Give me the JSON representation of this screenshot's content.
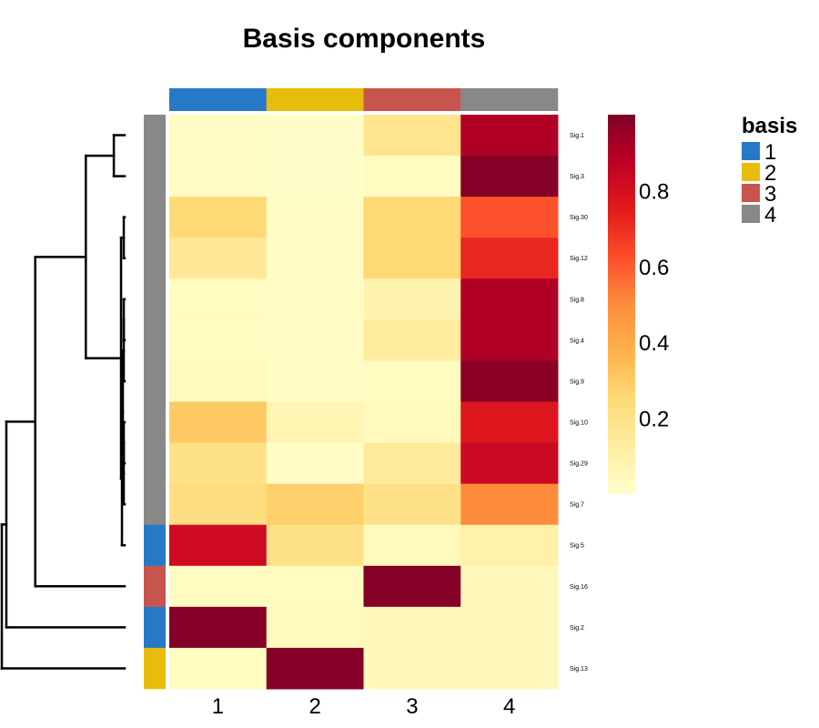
{
  "chart_data": {
    "type": "heatmap",
    "title": "Basis components",
    "columns": [
      "1",
      "2",
      "3",
      "4"
    ],
    "rows": [
      "Sig.1",
      "Sig.3",
      "Sig.30",
      "Sig.12",
      "Sig.8",
      "Sig.4",
      "Sig.9",
      "Sig.10",
      "Sig.29",
      "Sig.7",
      "Sig.5",
      "Sig.16",
      "Sig.2",
      "Sig.13"
    ],
    "values": [
      [
        0.02,
        0.01,
        0.18,
        0.9
      ],
      [
        0.02,
        0.01,
        0.03,
        0.99
      ],
      [
        0.25,
        0.02,
        0.25,
        0.62
      ],
      [
        0.15,
        0.02,
        0.25,
        0.72
      ],
      [
        0.03,
        0.02,
        0.08,
        0.9
      ],
      [
        0.03,
        0.02,
        0.13,
        0.9
      ],
      [
        0.04,
        0.02,
        0.03,
        0.98
      ],
      [
        0.3,
        0.07,
        0.04,
        0.77
      ],
      [
        0.2,
        0.02,
        0.14,
        0.83
      ],
      [
        0.22,
        0.28,
        0.2,
        0.5
      ],
      [
        0.82,
        0.2,
        0.04,
        0.1
      ],
      [
        0.03,
        0.03,
        0.99,
        0.05
      ],
      [
        0.99,
        0.04,
        0.05,
        0.05
      ],
      [
        0.03,
        0.99,
        0.05,
        0.05
      ]
    ],
    "row_basis": [
      "4",
      "4",
      "4",
      "4",
      "4",
      "4",
      "4",
      "4",
      "4",
      "4",
      "1",
      "3",
      "1",
      "2"
    ],
    "column_basis": [
      "1",
      "2",
      "3",
      "4"
    ],
    "color_scale": {
      "range": [
        0,
        1
      ],
      "ticks": [
        0.2,
        0.4,
        0.6,
        0.8
      ],
      "tick_labels": [
        "0.2",
        "0.4",
        "0.6",
        "0.8"
      ],
      "colors": [
        "#FFFFCC",
        "#FFEDA0",
        "#FED976",
        "#FEB24C",
        "#FD8D3C",
        "#FC4E2A",
        "#E31A1C",
        "#BD0026",
        "#800026"
      ]
    },
    "legend": {
      "title": "basis",
      "placement": "right",
      "entries": [
        {
          "label": "1",
          "color": "#2878C8"
        },
        {
          "label": "2",
          "color": "#E8BC0C"
        },
        {
          "label": "3",
          "color": "#C8554D"
        },
        {
          "label": "4",
          "color": "#888888"
        }
      ]
    },
    "dendrogram": {
      "side": "left",
      "row_order": [
        "Sig.1",
        "Sig.3",
        "Sig.30",
        "Sig.12",
        "Sig.8",
        "Sig.4",
        "Sig.9",
        "Sig.10",
        "Sig.29",
        "Sig.7",
        "Sig.5",
        "Sig.16",
        "Sig.2",
        "Sig.13"
      ],
      "merges": [
        {
          "a": "Sig.1",
          "b": "Sig.3",
          "height": 0.012
        },
        {
          "a": "Sig.30",
          "b": "Sig.12",
          "height": 0.001
        },
        {
          "a": "Sig.8",
          "b": "Sig.4",
          "height": 0.001
        },
        {
          "a": "Sig.8+Sig.4",
          "b": "Sig.9",
          "height": 0.001
        },
        {
          "a": "Sig.10",
          "b": "Sig.29",
          "height": 0.001
        },
        {
          "a": "Sig.10+Sig.29",
          "b": "Sig.7",
          "height": 0.001
        },
        {
          "a": "Sig.8+Sig.4+Sig.9",
          "b": "Sig.10+Sig.29+Sig.7",
          "height": 0.002
        },
        {
          "a": "group-Sig.8..Sig.7",
          "b": "Sig.5",
          "height": 0.003
        },
        {
          "a": "Sig.30+Sig.12",
          "b": "group-Sig.8..Sig.5",
          "height": 0.004
        },
        {
          "a": "Sig.1+Sig.3",
          "b": "group-Sig.30..Sig.5",
          "height": 0.043
        },
        {
          "a": "group-Sig.1..Sig.5",
          "b": "Sig.16",
          "height": 0.099
        },
        {
          "a": "group-Sig.1..Sig.16",
          "b": "Sig.2",
          "height": 0.131
        },
        {
          "a": "group-Sig.1..Sig.2",
          "b": "Sig.13",
          "height": 0.136
        }
      ]
    }
  }
}
